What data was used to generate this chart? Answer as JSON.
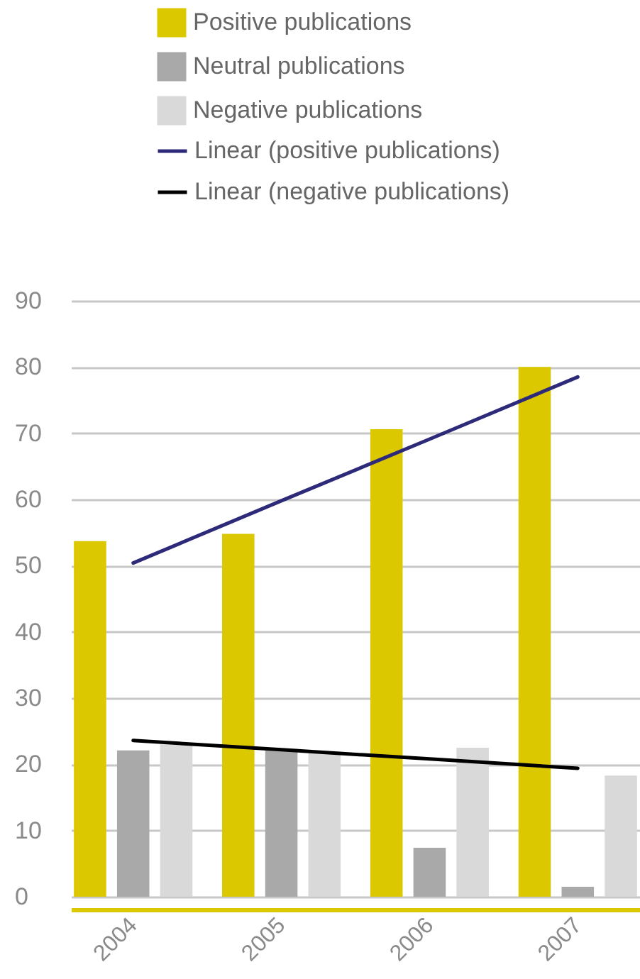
{
  "chart_data": {
    "type": "bar",
    "categories": [
      "2004",
      "2005",
      "2006",
      "2007"
    ],
    "series": [
      {
        "name": "Positive publications",
        "color": "#dcc800",
        "values": [
          53.7,
          54.8,
          70.6,
          80
        ]
      },
      {
        "name": "Neutral publications",
        "color": "#a9a9a9",
        "values": [
          22.1,
          22.3,
          7.4,
          1.5
        ]
      },
      {
        "name": "Negative publications",
        "color": "#d9d9d9",
        "values": [
          23,
          21.9,
          22.5,
          18.3
        ]
      },
      {
        "name": "Linear (positive publications)",
        "type": "line",
        "color": "#2e2a7a",
        "values": [
          50.4,
          59.8,
          69.1,
          78.5
        ]
      },
      {
        "name": "Linear (negative publications)",
        "type": "line",
        "color": "#000000",
        "values": [
          23.6,
          22.2,
          20.8,
          19.4
        ]
      }
    ],
    "ylim": [
      0,
      90
    ],
    "yticks": [
      0,
      10,
      20,
      30,
      40,
      50,
      60,
      70,
      80,
      90
    ],
    "grid": "y",
    "legend": "top left"
  }
}
